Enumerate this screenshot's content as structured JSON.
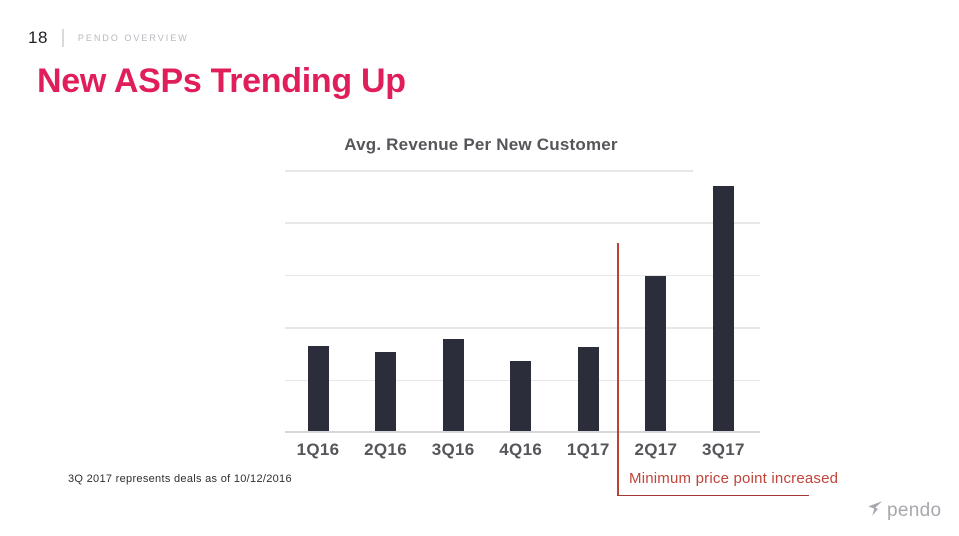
{
  "page": {
    "number": "18",
    "breadcrumb": "PENDO OVERVIEW",
    "title": "New ASPs Trending Up",
    "footnote": "3Q 2017 represents deals as of 10/12/2016",
    "logo_text": "pendo"
  },
  "colors": {
    "accent_pink": "#e01e5a",
    "bar": "#2b2d3a",
    "annotation_red": "#bc4238",
    "grid": "#e7e7ea",
    "axis_text": "#55565a",
    "header_muted": "#b7b9be",
    "logo_grey": "#a6a8ad"
  },
  "chart_data": {
    "type": "bar",
    "title": "Avg. Revenue Per New Customer",
    "xlabel": "",
    "ylabel": "",
    "categories": [
      "1Q16",
      "2Q16",
      "3Q16",
      "4Q16",
      "1Q17",
      "2Q17",
      "3Q17"
    ],
    "values": [
      1.63,
      1.51,
      1.76,
      1.34,
      1.61,
      2.96,
      4.67
    ],
    "ylim": [
      0,
      5
    ],
    "y_tick_labels_shown": false,
    "grid": true,
    "legend": false,
    "bar_color": "#2b2d3a",
    "annotation": {
      "text": "Minimum price point increased",
      "divider_after_category": "1Q17",
      "color": "#c0443a"
    }
  }
}
